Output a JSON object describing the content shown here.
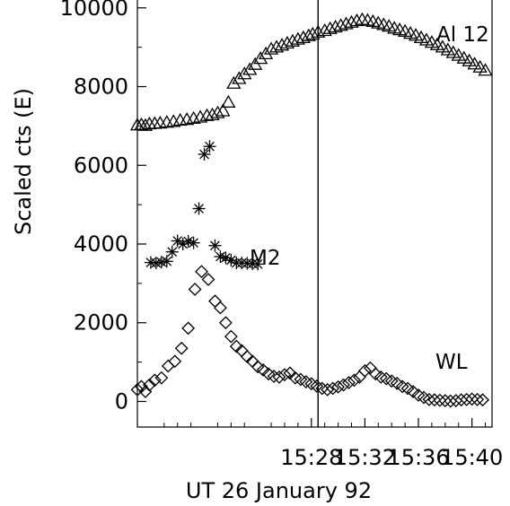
{
  "chart_data": {
    "type": "scatter",
    "xlabel": "UT 26 January 92",
    "ylabel": "Scaled cts (E)",
    "xlim_minutes": [
      15.0,
      41.5
    ],
    "ylim": [
      -650,
      10200
    ],
    "x_ticks": [
      {
        "label": "15:28",
        "value": 28
      },
      {
        "label": "15:32",
        "value": 32
      },
      {
        "label": "15:36",
        "value": 36
      },
      {
        "label": "15:40",
        "value": 40
      }
    ],
    "y_ticks": [
      0,
      2000,
      4000,
      6000,
      8000,
      10000
    ],
    "y_tick_labels": [
      "0",
      "2000",
      "4000",
      "6000",
      "8000",
      "10000"
    ],
    "vertical_line_x": 28.5,
    "grid": false,
    "series": [
      {
        "name": "Al 12",
        "marker": "triangle",
        "x": [
          15.0,
          15.3,
          15.6,
          15.9,
          16.3,
          16.7,
          17.2,
          17.7,
          18.2,
          18.7,
          19.2,
          19.7,
          20.2,
          20.6,
          21.0,
          21.4,
          21.8,
          22.2,
          22.6,
          23.0,
          23.4,
          23.8,
          24.2,
          24.6,
          25.0,
          25.4,
          25.8,
          26.2,
          26.6,
          27.0,
          27.4,
          27.8,
          28.1,
          28.5,
          29.0,
          29.4,
          29.8,
          30.2,
          30.6,
          31.0,
          31.4,
          31.8,
          32.2,
          32.6,
          33.0,
          33.4,
          33.8,
          34.2,
          34.6,
          35.0,
          35.4,
          35.8,
          36.2,
          36.6,
          37.0,
          37.4,
          37.8,
          38.2,
          38.6,
          39.0,
          39.4,
          39.8,
          40.2,
          40.6,
          41.0
        ],
        "y": [
          7020,
          7030,
          7010,
          7050,
          7060,
          7070,
          7090,
          7110,
          7140,
          7160,
          7190,
          7220,
          7260,
          7280,
          7330,
          7380,
          7600,
          8080,
          8200,
          8320,
          8430,
          8560,
          8710,
          8830,
          8950,
          9000,
          9050,
          9100,
          9150,
          9200,
          9240,
          9290,
          9330,
          9380,
          9420,
          9470,
          9510,
          9550,
          9590,
          9630,
          9670,
          9700,
          9680,
          9650,
          9610,
          9570,
          9530,
          9480,
          9440,
          9400,
          9350,
          9300,
          9240,
          9180,
          9120,
          9060,
          9000,
          8930,
          8860,
          8790,
          8720,
          8650,
          8570,
          8490,
          8410
        ],
        "note": "approximate"
      },
      {
        "name": "M2",
        "marker": "asterisk",
        "x": [
          16.0,
          16.4,
          16.8,
          17.2,
          17.6,
          18.0,
          18.4,
          18.8,
          19.2,
          19.6,
          20.0,
          20.4,
          20.8,
          21.2,
          21.6,
          22.0,
          22.4,
          22.8,
          23.2,
          23.6,
          24.0
        ],
        "y": [
          3530,
          3520,
          3540,
          3560,
          3800,
          4080,
          4000,
          4070,
          4030,
          4900,
          6280,
          6480,
          3960,
          3680,
          3650,
          3590,
          3520,
          3520,
          3510,
          3500,
          3490
        ],
        "note": "approximate"
      },
      {
        "name": "WL",
        "marker": "diamond",
        "x": [
          15.0,
          15.3,
          15.6,
          15.9,
          16.3,
          16.8,
          17.3,
          17.8,
          18.3,
          18.8,
          19.3,
          19.8,
          20.3,
          20.8,
          21.2,
          21.6,
          22.0,
          22.4,
          22.8,
          23.2,
          23.6,
          24.0,
          24.4,
          24.8,
          25.2,
          25.6,
          26.0,
          26.4,
          26.8,
          27.2,
          27.6,
          28.0,
          28.4,
          28.8,
          29.2,
          29.6,
          30.0,
          30.4,
          30.8,
          31.2,
          31.6,
          32.0,
          32.4,
          32.8,
          33.2,
          33.6,
          34.0,
          34.4,
          34.8,
          35.2,
          35.6,
          36.0,
          36.4,
          36.8,
          37.2,
          37.6,
          38.0,
          38.4,
          38.8,
          39.2,
          39.6,
          40.0,
          40.4,
          40.8
        ],
        "y": [
          300,
          380,
          250,
          420,
          540,
          600,
          900,
          1020,
          1350,
          1860,
          2850,
          3300,
          3100,
          2550,
          2380,
          2000,
          1650,
          1400,
          1290,
          1140,
          1020,
          880,
          800,
          700,
          640,
          620,
          680,
          720,
          600,
          560,
          500,
          450,
          390,
          330,
          300,
          330,
          370,
          420,
          480,
          540,
          620,
          780,
          850,
          700,
          620,
          580,
          520,
          460,
          380,
          330,
          250,
          160,
          100,
          50,
          40,
          30,
          20,
          10,
          20,
          40,
          50,
          60,
          50,
          40
        ],
        "note": "approximate"
      }
    ]
  }
}
